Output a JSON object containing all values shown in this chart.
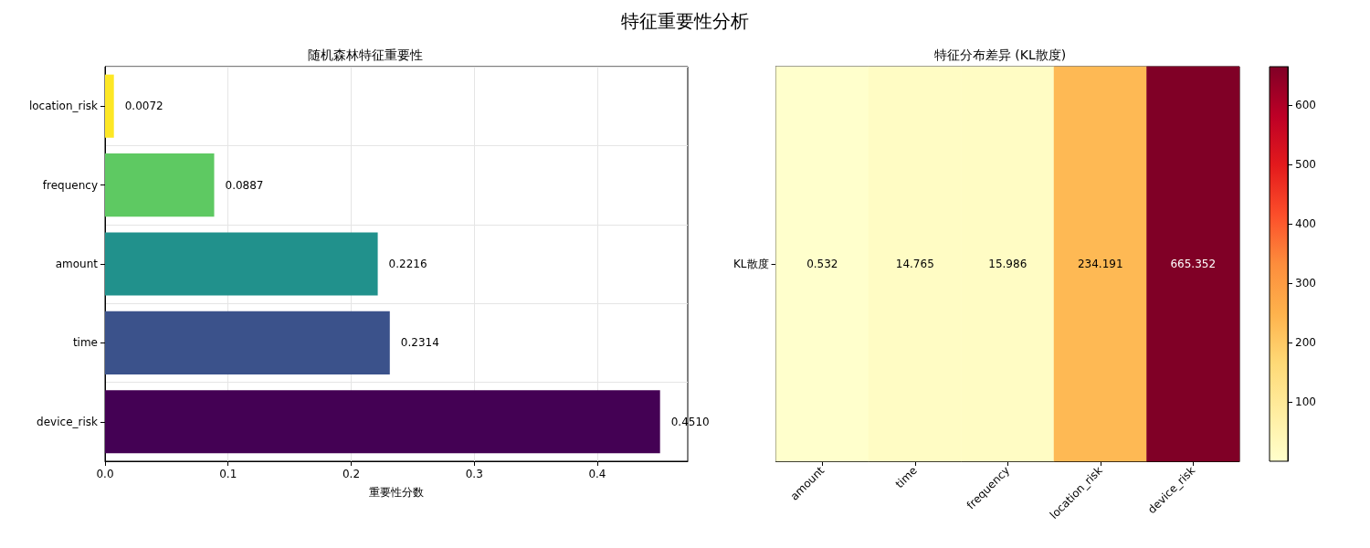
{
  "chart_data": [
    {
      "type": "bar",
      "title": "随机森林特征重要性",
      "annotations": [
        "特征重要性分析"
      ],
      "orientation": "horizontal",
      "categories": [
        "location_risk",
        "frequency",
        "amount",
        "time",
        "device_risk"
      ],
      "values": [
        0.0072,
        0.0887,
        0.2216,
        0.2314,
        0.451
      ],
      "colors": [
        "#fde725",
        "#5ec962",
        "#21918c",
        "#3b528b",
        "#440154"
      ],
      "value_labels": [
        "0.0072",
        "0.0887",
        "0.2216",
        "0.2314",
        "0.4510"
      ],
      "xlim": [
        0,
        0.4735
      ],
      "xticks": [
        {
          "value": 0,
          "label": "0.0"
        },
        {
          "value": 0.1,
          "label": "0.1"
        },
        {
          "value": 0.2,
          "label": "0.2"
        },
        {
          "value": 0.3,
          "label": "0.3"
        },
        {
          "value": 0.4,
          "label": "0.4"
        }
      ],
      "xlabel": "重要性分数",
      "grid": true
    },
    {
      "type": "heatmap",
      "title": "特征分布差异 (KL散度)",
      "categories": [
        "amount",
        "time",
        "frequency",
        "location_risk",
        "device_risk"
      ],
      "y_categories": [
        "KL散度"
      ],
      "cells": [
        [
          0.532,
          14.765,
          15.986,
          234.191,
          665.352
        ]
      ],
      "clim": [
        0.532,
        665.352
      ],
      "cticks": [
        100,
        200,
        300,
        400,
        500,
        600
      ],
      "data_labels": true
    }
  ]
}
